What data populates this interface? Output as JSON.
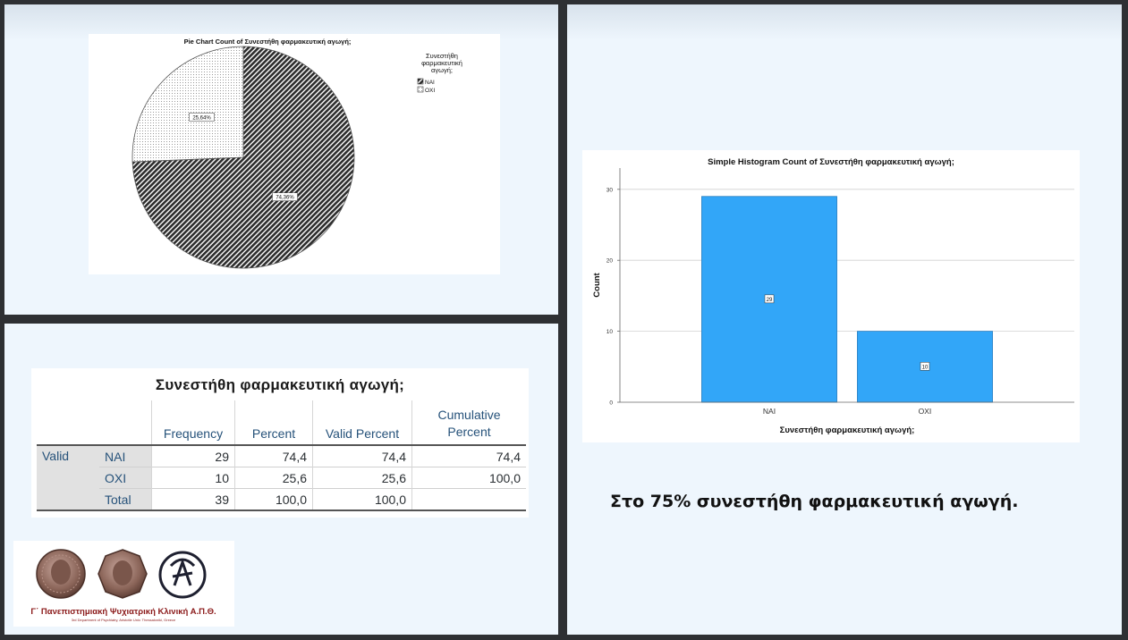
{
  "chart_data": [
    {
      "type": "pie",
      "title": "Pie Chart Count of Συνεστήθη φαρμακευτική αγωγή;",
      "legend": {
        "title": "Συνεστήθη φαρμακευτική αγωγή;",
        "title_lines": [
          "Συνεστήθη",
          "φαρμακευτική",
          "αγωγή;"
        ],
        "entries": [
          "ΝΑΙ",
          "ΟΧΙ"
        ],
        "placement": "top-right"
      },
      "slices": [
        {
          "label": "ΝΑΙ",
          "value": 74.36,
          "display": "74,36%",
          "pattern": "dark-hatch"
        },
        {
          "label": "ΟΧΙ",
          "value": 25.64,
          "display": "25,64%",
          "pattern": "light-dots"
        }
      ]
    },
    {
      "type": "bar",
      "title": "Simple Histogram Count of Συνεστήθη φαρμακευτική αγωγή;",
      "categories": [
        "ΝΑΙ",
        "ΟΧΙ"
      ],
      "values": [
        29,
        10
      ],
      "data_labels": [
        "29",
        "10"
      ],
      "xlabel": "Συνεστήθη φαρμακευτική αγωγή;",
      "ylabel": "Count",
      "ylim": [
        0,
        30
      ],
      "yticks": [
        0,
        10,
        20,
        30
      ],
      "grid": true,
      "bar_color": "#32a6f8"
    }
  ],
  "table": {
    "title": "Συνεστήθη φαρμακευτική αγωγή;",
    "headers": [
      "Frequency",
      "Percent",
      "Valid Percent",
      "Cumulative Percent"
    ],
    "header_cumulative_lines": [
      "Cumulative",
      "Percent"
    ],
    "group_label": "Valid",
    "rows": [
      {
        "label": "ΝΑΙ",
        "cells": [
          "29",
          "74,4",
          "74,4",
          "74,4"
        ]
      },
      {
        "label": "ΟΧΙ",
        "cells": [
          "10",
          "25,6",
          "25,6",
          "100,0"
        ]
      },
      {
        "label": "Total",
        "cells": [
          "39",
          "100,0",
          "100,0",
          ""
        ]
      }
    ]
  },
  "caption": "Στο 75% συνεστήθη φαρμακευτική αγωγή.",
  "logo": {
    "text": "Γ΄ Πανεπιστημιακή Ψυχιατρική Κλινική Α.Π.Θ.",
    "subtext": "3rd Department of Psychiatry, Aristotle Univ. Thessaloniki, Greece"
  },
  "colors": {
    "header_text": "#26527a",
    "bar": "#32a6f8",
    "logo_red": "#8b1a1a",
    "background": "#eef6fd",
    "frame": "#2e3033"
  }
}
